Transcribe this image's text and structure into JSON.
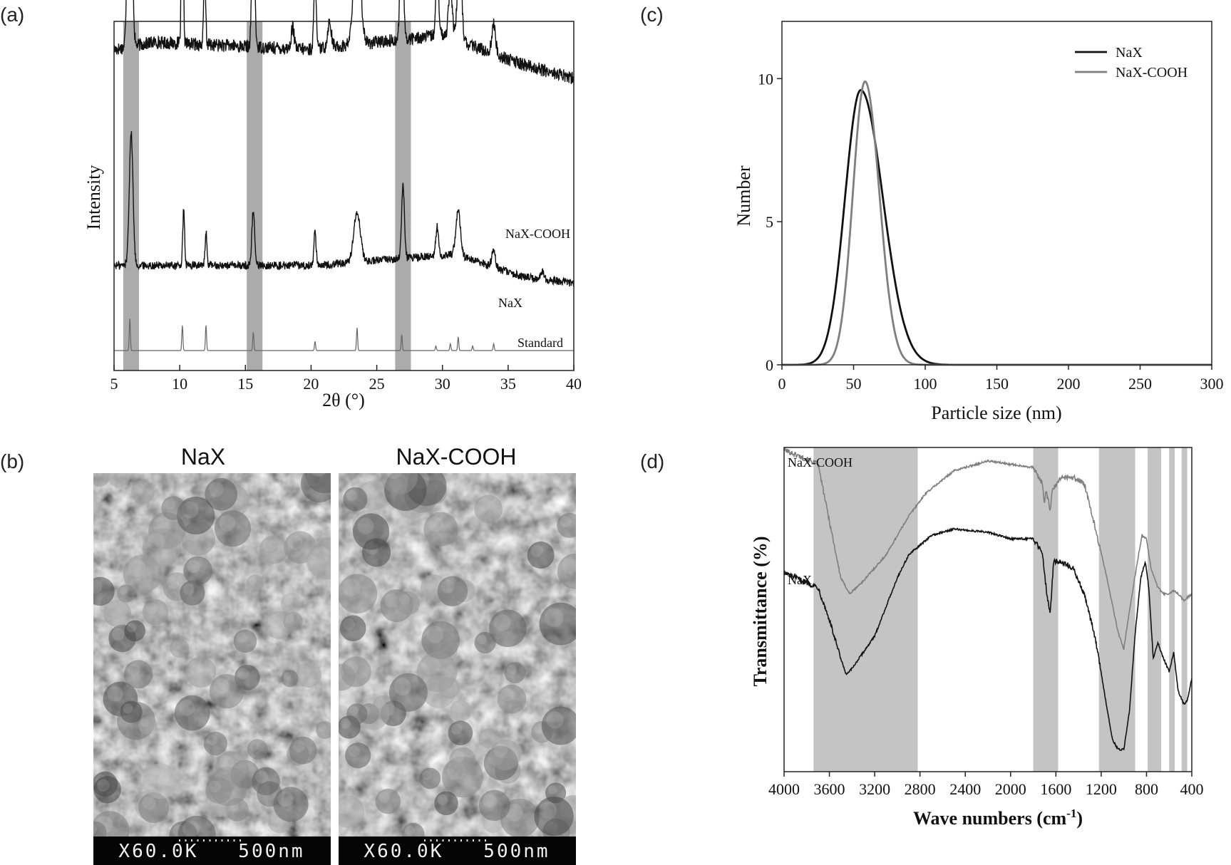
{
  "colors": {
    "band": "#ababab",
    "line_dark": "#111111",
    "line_gray": "#7f7f7f",
    "sem_bg": "#3a3a3a"
  },
  "panel_labels": [
    "(a)",
    "(b)",
    "(c)",
    "(d)"
  ],
  "chart_data": [
    {
      "panel": "(a)",
      "type": "line",
      "xlabel": "2θ (°)",
      "ylabel": "Intensity",
      "xlim": [
        5,
        40
      ],
      "xticks": [
        5,
        10,
        15,
        20,
        25,
        30,
        35,
        40
      ],
      "yticks_shown": false,
      "highlight_bands": [
        [
          5.7,
          6.9
        ],
        [
          15.1,
          16.3
        ],
        [
          26.4,
          27.6
        ]
      ],
      "series": [
        {
          "name": "NaX-COOH",
          "baseline": [
            [
              5,
              0.56
            ],
            [
              8,
              0.58
            ],
            [
              20,
              0.56
            ],
            [
              30,
              0.6
            ],
            [
              36,
              0.52
            ],
            [
              40,
              0.48
            ]
          ],
          "peaks": [
            [
              6.2,
              1.0,
              0.2
            ],
            [
              10.2,
              0.48,
              0.1
            ],
            [
              11.9,
              0.22,
              0.1
            ],
            [
              15.6,
              0.37,
              0.15
            ],
            [
              18.6,
              0.06,
              0.15
            ],
            [
              20.3,
              0.2,
              0.12
            ],
            [
              21.4,
              0.07,
              0.2
            ],
            [
              23.5,
              0.33,
              0.35
            ],
            [
              26.9,
              0.49,
              0.15
            ],
            [
              29.6,
              0.19,
              0.15
            ],
            [
              30.6,
              0.14,
              0.2
            ],
            [
              31.3,
              0.25,
              0.22
            ],
            [
              33.9,
              0.08,
              0.2
            ]
          ]
        },
        {
          "name": "NaX",
          "baseline": [
            [
              5,
              0.25
            ],
            [
              20,
              0.25
            ],
            [
              31,
              0.3
            ],
            [
              36,
              0.2
            ],
            [
              40,
              0.17
            ]
          ],
          "peaks": [
            [
              6.3,
              0.6,
              0.2
            ],
            [
              10.3,
              0.25,
              0.1
            ],
            [
              12.0,
              0.15,
              0.1
            ],
            [
              15.6,
              0.25,
              0.15
            ],
            [
              20.3,
              0.15,
              0.12
            ],
            [
              23.5,
              0.23,
              0.35
            ],
            [
              27.0,
              0.33,
              0.15
            ],
            [
              29.6,
              0.13,
              0.15
            ],
            [
              31.2,
              0.2,
              0.25
            ],
            [
              33.9,
              0.07,
              0.2
            ],
            [
              37.6,
              0.03,
              0.2
            ]
          ]
        },
        {
          "name": "Standard",
          "baseline": [
            [
              5,
              0.0
            ],
            [
              40,
              0.0
            ]
          ],
          "peaks": [
            [
              6.2,
              0.14,
              0.06
            ],
            [
              10.2,
              0.11,
              0.06
            ],
            [
              12.0,
              0.11,
              0.06
            ],
            [
              15.6,
              0.08,
              0.06
            ],
            [
              20.3,
              0.04,
              0.06
            ],
            [
              23.5,
              0.1,
              0.06
            ],
            [
              26.9,
              0.07,
              0.06
            ],
            [
              29.5,
              0.02,
              0.06
            ],
            [
              30.6,
              0.03,
              0.06
            ],
            [
              31.2,
              0.06,
              0.06
            ],
            [
              32.3,
              0.02,
              0.06
            ],
            [
              33.9,
              0.03,
              0.06
            ]
          ]
        }
      ]
    },
    {
      "panel": "(c)",
      "type": "line",
      "xlabel": "Particle size (nm)",
      "ylabel": "Number",
      "xlim": [
        0,
        300
      ],
      "ylim": [
        0,
        12
      ],
      "xticks": [
        0,
        50,
        100,
        150,
        200,
        250,
        300
      ],
      "yticks": [
        0,
        5,
        10
      ],
      "legend": "top-right",
      "series": [
        {
          "name": "NaX",
          "peak_x": 55,
          "peak_y": 9.6,
          "sigma_left": 11,
          "sigma_right": 15.5
        },
        {
          "name": "NaX-COOH",
          "peak_x": 58,
          "peak_y": 9.9,
          "sigma_left": 8.5,
          "sigma_right": 10
        }
      ]
    },
    {
      "panel": "(d)",
      "type": "line",
      "xlabel": "Wave numbers (cm",
      "xlabel_sup": "-1",
      "xlabel_end": ")",
      "ylabel": "Transmittance (%)",
      "xlim": [
        4000,
        400
      ],
      "xticks": [
        4000,
        3600,
        3200,
        2800,
        2400,
        2000,
        1600,
        1200,
        800,
        400
      ],
      "yticks_shown": false,
      "highlight_bands": [
        [
          3740,
          2820
        ],
        [
          1800,
          1580
        ],
        [
          1220,
          900
        ],
        [
          790,
          670
        ],
        [
          600,
          550
        ],
        [
          490,
          440
        ]
      ],
      "series": [
        {
          "name": "NaX-COOH",
          "points": [
            [
              3900,
              0.93
            ],
            [
              3700,
              0.9
            ],
            [
              3620,
              0.76
            ],
            [
              3500,
              0.55
            ],
            [
              3420,
              0.5
            ],
            [
              3300,
              0.54
            ],
            [
              3100,
              0.62
            ],
            [
              2900,
              0.74
            ],
            [
              2750,
              0.81
            ],
            [
              2500,
              0.88
            ],
            [
              2200,
              0.91
            ],
            [
              2000,
              0.9
            ],
            [
              1800,
              0.89
            ],
            [
              1720,
              0.84
            ],
            [
              1700,
              0.78
            ],
            [
              1690,
              0.82
            ],
            [
              1650,
              0.76
            ],
            [
              1630,
              0.82
            ],
            [
              1550,
              0.86
            ],
            [
              1450,
              0.86
            ],
            [
              1350,
              0.84
            ],
            [
              1250,
              0.7
            ],
            [
              1150,
              0.55
            ],
            [
              1050,
              0.38
            ],
            [
              1000,
              0.33
            ],
            [
              950,
              0.45
            ],
            [
              880,
              0.6
            ],
            [
              840,
              0.68
            ],
            [
              800,
              0.67
            ],
            [
              760,
              0.58
            ],
            [
              700,
              0.52
            ],
            [
              650,
              0.5
            ],
            [
              600,
              0.5
            ],
            [
              560,
              0.51
            ],
            [
              520,
              0.5
            ],
            [
              470,
              0.48
            ],
            [
              400,
              0.5
            ]
          ]
        },
        {
          "name": "NaX",
          "points": [
            [
              3900,
              0.55
            ],
            [
              3700,
              0.52
            ],
            [
              3600,
              0.42
            ],
            [
              3500,
              0.3
            ],
            [
              3450,
              0.25
            ],
            [
              3400,
              0.27
            ],
            [
              3200,
              0.37
            ],
            [
              3000,
              0.55
            ],
            [
              2900,
              0.62
            ],
            [
              2700,
              0.68
            ],
            [
              2500,
              0.7
            ],
            [
              2200,
              0.69
            ],
            [
              2000,
              0.67
            ],
            [
              1800,
              0.67
            ],
            [
              1720,
              0.63
            ],
            [
              1680,
              0.5
            ],
            [
              1650,
              0.44
            ],
            [
              1620,
              0.6
            ],
            [
              1550,
              0.6
            ],
            [
              1450,
              0.58
            ],
            [
              1350,
              0.5
            ],
            [
              1250,
              0.36
            ],
            [
              1150,
              0.15
            ],
            [
              1100,
              0.05
            ],
            [
              1050,
              0.02
            ],
            [
              1000,
              0.02
            ],
            [
              950,
              0.14
            ],
            [
              900,
              0.38
            ],
            [
              850,
              0.55
            ],
            [
              810,
              0.6
            ],
            [
              780,
              0.52
            ],
            [
              740,
              0.3
            ],
            [
              700,
              0.35
            ],
            [
              660,
              0.31
            ],
            [
              600,
              0.26
            ],
            [
              560,
              0.32
            ],
            [
              520,
              0.2
            ],
            [
              470,
              0.16
            ],
            [
              440,
              0.17
            ],
            [
              400,
              0.24
            ]
          ]
        }
      ]
    }
  ],
  "sem": {
    "images": [
      {
        "title": "NaX",
        "scale_text": "X60.0K   500nm"
      },
      {
        "title": "NaX-COOH",
        "scale_text": "X60.0K   500nm"
      }
    ]
  }
}
